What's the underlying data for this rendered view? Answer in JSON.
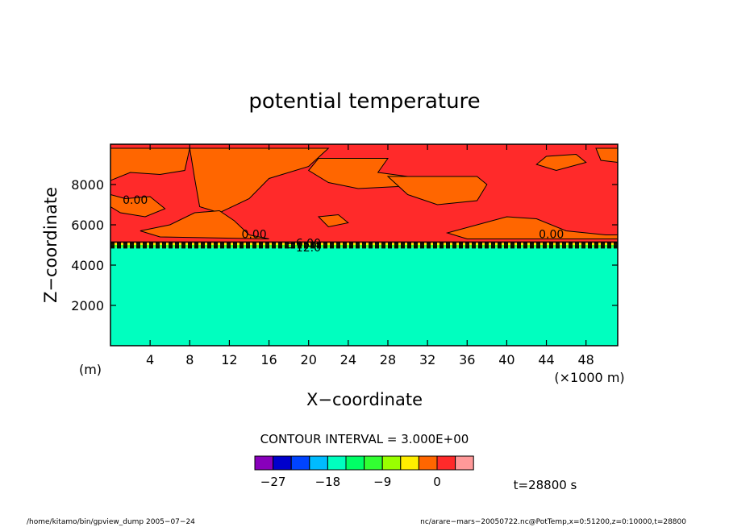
{
  "chart_data": {
    "type": "contour",
    "title": "potential temperature",
    "xlabel": "X−coordinate",
    "ylabel": "Z−coordinate",
    "x_unit": "(×1000 m)",
    "y_unit": "(m)",
    "xlim": [
      0,
      51.2
    ],
    "ylim": [
      0,
      10000
    ],
    "xticks": [
      4,
      8,
      12,
      16,
      20,
      24,
      28,
      32,
      36,
      40,
      44,
      48
    ],
    "yticks": [
      2000,
      4000,
      6000,
      8000
    ],
    "regions": [
      {
        "zmin": 0,
        "zmax": 4850,
        "value_range": [
          -18,
          -15
        ],
        "color": "#00ffbf"
      },
      {
        "zmin": 4850,
        "zmax": 5000,
        "value_range": [
          -15,
          -9
        ],
        "color": "#32ff32"
      },
      {
        "zmin": 5000,
        "zmax": 5100,
        "value_range": [
          -6,
          -3
        ],
        "color": "#ffee00"
      },
      {
        "zmin": 5100,
        "zmax": 10000,
        "value_range": [
          0,
          3
        ],
        "color": "#ff2a2a"
      }
    ],
    "orange_patches": [
      {
        "points": [
          [
            0,
            9800
          ],
          [
            8,
            9800
          ],
          [
            7.5,
            8700
          ],
          [
            5,
            8500
          ],
          [
            2,
            8600
          ],
          [
            0,
            8200
          ]
        ]
      },
      {
        "points": [
          [
            0,
            7500
          ],
          [
            1.5,
            7300
          ],
          [
            4,
            7400
          ],
          [
            5.5,
            6800
          ],
          [
            3.5,
            6400
          ],
          [
            1,
            6600
          ],
          [
            0,
            6900
          ]
        ]
      },
      {
        "points": [
          [
            8,
            9800
          ],
          [
            22,
            9800
          ],
          [
            20,
            8900
          ],
          [
            16,
            8300
          ],
          [
            14,
            7300
          ],
          [
            11,
            6600
          ],
          [
            9,
            6900
          ],
          [
            8.5,
            8300
          ]
        ]
      },
      {
        "points": [
          [
            20,
            8700
          ],
          [
            21,
            9300
          ],
          [
            28,
            9300
          ],
          [
            27,
            8600
          ],
          [
            30,
            8400
          ],
          [
            29,
            7900
          ],
          [
            25,
            7800
          ],
          [
            22,
            8100
          ]
        ]
      },
      {
        "points": [
          [
            28,
            8400
          ],
          [
            37,
            8400
          ],
          [
            38,
            8000
          ],
          [
            37,
            7200
          ],
          [
            33,
            7000
          ],
          [
            30,
            7500
          ]
        ]
      },
      {
        "points": [
          [
            8.5,
            6600
          ],
          [
            11,
            6700
          ],
          [
            12.5,
            6200
          ],
          [
            14,
            5500
          ],
          [
            16,
            5300
          ],
          [
            5,
            5400
          ],
          [
            3,
            5700
          ],
          [
            6,
            6000
          ]
        ]
      },
      {
        "points": [
          [
            37,
            6000
          ],
          [
            40,
            6400
          ],
          [
            43,
            6300
          ],
          [
            46,
            5700
          ],
          [
            50,
            5500
          ],
          [
            51.2,
            5500
          ],
          [
            51.2,
            5300
          ],
          [
            36,
            5300
          ],
          [
            34,
            5600
          ]
        ]
      },
      {
        "points": [
          [
            49,
            9800
          ],
          [
            51.2,
            9800
          ],
          [
            51.2,
            9100
          ],
          [
            49.5,
            9200
          ]
        ]
      },
      {
        "points": [
          [
            44,
            9400
          ],
          [
            47,
            9500
          ],
          [
            48,
            9100
          ],
          [
            45,
            8700
          ],
          [
            43,
            9000
          ]
        ]
      },
      {
        "points": [
          [
            21,
            6400
          ],
          [
            23,
            6500
          ],
          [
            24,
            6100
          ],
          [
            22,
            5900
          ]
        ]
      }
    ],
    "contour_labels": [
      {
        "text": "0.00",
        "x": 2.5,
        "z": 7250
      },
      {
        "text": "0.00",
        "x": 14.5,
        "z": 5550
      },
      {
        "text": "0.00",
        "x": 44.5,
        "z": 5550
      },
      {
        "text": "−6.00",
        "x": 19.5,
        "z": 5100
      },
      {
        "text": "−12.0",
        "x": 19.5,
        "z": 4880
      }
    ],
    "contour_interval": "CONTOUR INTERVAL = 3.000E+00",
    "colorbar": {
      "colors": [
        "#8800bb",
        "#0000cc",
        "#0044ff",
        "#00bbff",
        "#00ffbf",
        "#00ff66",
        "#32ff32",
        "#99ff00",
        "#ffee00",
        "#ff6600",
        "#ff2a2a",
        "#ff9999"
      ],
      "labels": [
        {
          "text": "−27",
          "index": 1
        },
        {
          "text": "−18",
          "index": 4
        },
        {
          "text": "−9",
          "index": 7
        },
        {
          "text": "0",
          "index": 10
        }
      ]
    },
    "time_label": "t=28800 s",
    "footer_left": "/home/kitamo/bin/gpview_dump  2005−07−24",
    "footer_right": "nc/arare−mars−20050722.nc@PotTemp,x=0:51200,z=0:10000,t=28800"
  }
}
